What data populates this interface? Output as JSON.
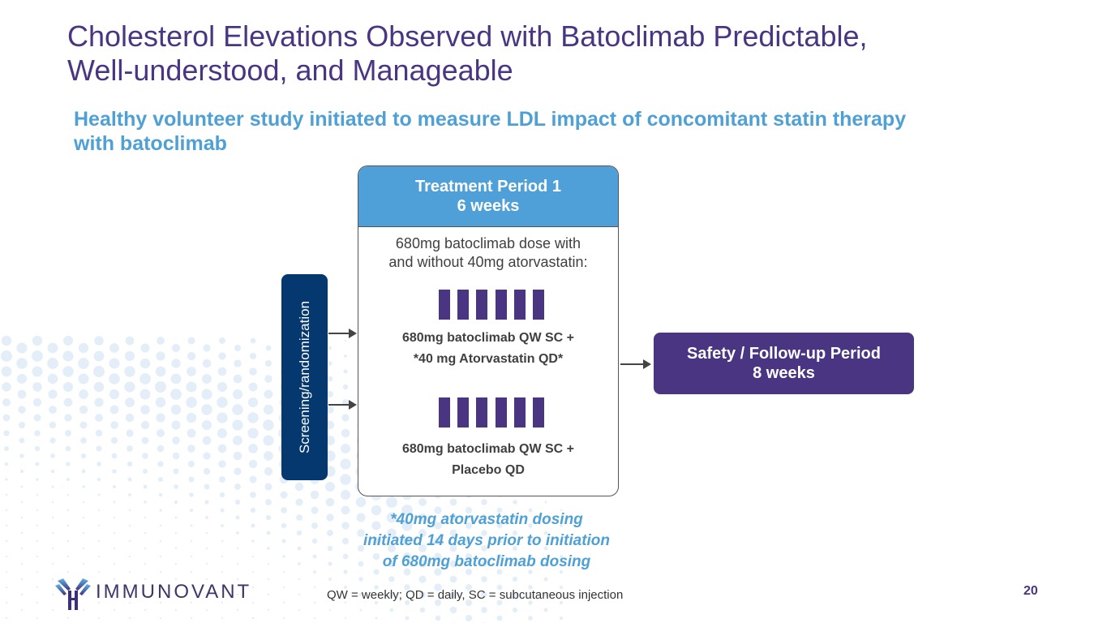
{
  "slide": {
    "title_line1": "Cholesterol Elevations Observed with Batoclimab Predictable,",
    "title_line2": "Well-understood, and Manageable",
    "subtitle_line1": "Healthy volunteer study initiated to measure LDL impact of concomitant statin therapy",
    "subtitle_line2": "with batoclimab",
    "page_number": "20"
  },
  "diagram": {
    "screening": {
      "label": "Screening/randomization"
    },
    "treatment_period": {
      "title": "Treatment Period 1",
      "duration": "6 weeks",
      "description_line1": "680mg batoclimab dose with",
      "description_line2": "and without 40mg atorvastatin:",
      "arms": [
        {
          "dose_count": 6,
          "label_line1": "680mg batoclimab QW SC +",
          "label_line2": "*40 mg Atorvastatin QD*"
        },
        {
          "dose_count": 6,
          "label_line1": "680mg batoclimab QW SC +",
          "label_line2": "Placebo QD"
        }
      ]
    },
    "safety_period": {
      "title": "Safety / Follow-up Period",
      "duration": "8 weeks"
    }
  },
  "notes": {
    "atorvastatin_line1": "*40mg atorvastatin dosing",
    "atorvastatin_line2": "initiated 14 days prior to initiation",
    "atorvastatin_line3": "of 680mg batoclimab dosing",
    "abbreviations": "QW = weekly; QD = daily, SC = subcutaneous injection"
  },
  "logo": {
    "text": "IMMUNOVANT"
  },
  "colors": {
    "title": "#4a3582",
    "accent_blue": "#4fa0d5",
    "navy": "#063870",
    "purple": "#4a3582"
  }
}
